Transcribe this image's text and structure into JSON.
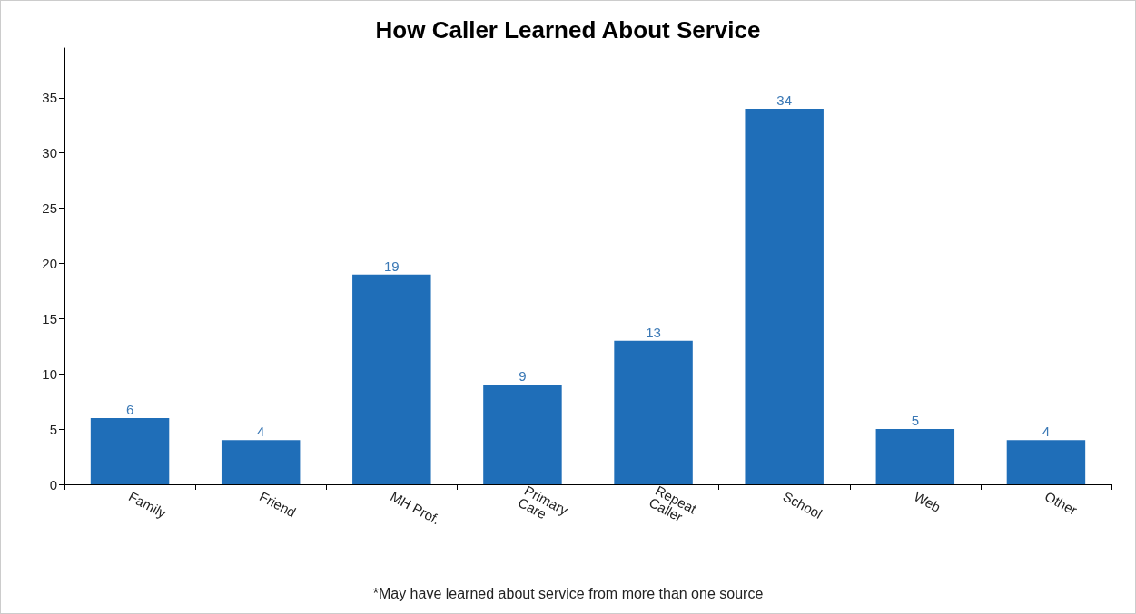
{
  "chart_data": {
    "type": "bar",
    "title": "How Caller Learned About Service",
    "categories": [
      "Family",
      "Friend",
      "MH Prof.",
      "Primary Care",
      "Repeat Caller",
      "School",
      "Web",
      "Other"
    ],
    "values": [
      6,
      4,
      19,
      9,
      13,
      34,
      5,
      4
    ],
    "color": "#1f6eb8",
    "ylim": [
      0,
      39.5
    ],
    "yticks": [
      0,
      5,
      10,
      15,
      20,
      25,
      30,
      35
    ],
    "grid": false,
    "data_labels": true,
    "annotations": [
      "*May have learned about service from more than one source"
    ]
  }
}
